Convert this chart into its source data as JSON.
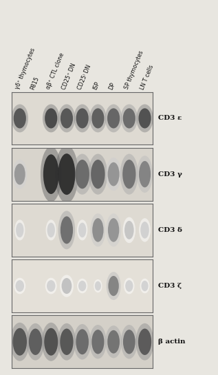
{
  "figure_bg": "#e8e6e0",
  "panel_bg_default": "#dedad2",
  "panel_bg_light": "#e4e0d8",
  "label_color": "#111111",
  "border_color": "#777777",
  "columns": [
    "γδ⁺ thymocytes",
    "P815",
    "αβ⁺ CTL clone",
    "CD25⁺ DN",
    "CD25⁾ DN",
    "ISP",
    "DP",
    "SP thymocytes",
    "LN T cells"
  ],
  "row_labels": [
    "CD3 ε",
    "CD3 γ",
    "CD3 δ",
    "CD3 ζ",
    "β actin"
  ],
  "panel_count": 5,
  "col_count": 9,
  "panel_bgs": [
    "#dedad2",
    "#d8d4cc",
    "#dedad2",
    "#e4e0d8",
    "#d4d0c8"
  ],
  "bands": {
    "CD3e": [
      0.82,
      0.0,
      0.88,
      0.82,
      0.82,
      0.78,
      0.75,
      0.72,
      0.85
    ],
    "CD3g": [
      0.5,
      0.0,
      1.0,
      1.0,
      0.72,
      0.75,
      0.52,
      0.68,
      0.6
    ],
    "CD3d": [
      0.08,
      0.0,
      0.08,
      0.7,
      0.08,
      0.55,
      0.52,
      0.28,
      0.22
    ],
    "CD3z": [
      0.12,
      0.0,
      0.12,
      0.3,
      0.08,
      0.06,
      0.6,
      0.1,
      0.08
    ],
    "bactin": [
      0.82,
      0.78,
      0.85,
      0.82,
      0.72,
      0.7,
      0.68,
      0.7,
      0.8
    ]
  },
  "band_widths": {
    "CD3e": [
      0.8,
      0.0,
      0.8,
      0.8,
      0.8,
      0.8,
      0.8,
      0.8,
      0.8
    ],
    "CD3g": [
      0.7,
      0.0,
      1.0,
      1.1,
      0.9,
      0.9,
      0.75,
      0.85,
      0.75
    ],
    "CD3d": [
      0.5,
      0.0,
      0.5,
      0.8,
      0.5,
      0.72,
      0.72,
      0.6,
      0.55
    ],
    "CD3z": [
      0.55,
      0.0,
      0.55,
      0.65,
      0.5,
      0.4,
      0.68,
      0.5,
      0.45
    ],
    "bactin": [
      0.9,
      0.85,
      0.88,
      0.85,
      0.82,
      0.8,
      0.78,
      0.78,
      0.85
    ]
  },
  "band_heights": {
    "CD3e": [
      0.38,
      0.0,
      0.38,
      0.38,
      0.38,
      0.38,
      0.38,
      0.38,
      0.38
    ],
    "CD3g": [
      0.4,
      0.0,
      0.75,
      0.78,
      0.55,
      0.55,
      0.45,
      0.55,
      0.5
    ],
    "CD3d": [
      0.28,
      0.0,
      0.28,
      0.52,
      0.28,
      0.45,
      0.45,
      0.35,
      0.32
    ],
    "CD3z": [
      0.22,
      0.0,
      0.22,
      0.3,
      0.2,
      0.18,
      0.38,
      0.22,
      0.2
    ],
    "bactin": [
      0.52,
      0.5,
      0.52,
      0.5,
      0.48,
      0.46,
      0.44,
      0.46,
      0.5
    ]
  }
}
